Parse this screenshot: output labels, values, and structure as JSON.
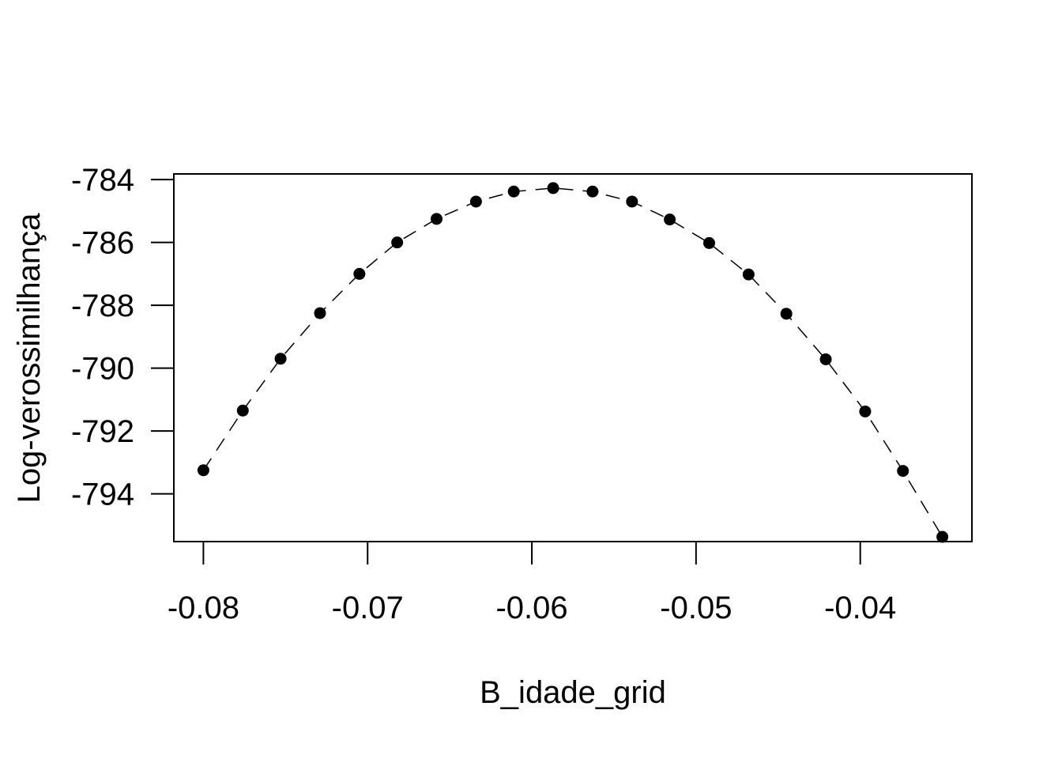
{
  "chart_data": {
    "type": "scatter",
    "title": "",
    "xlabel": "B_idade_grid",
    "ylabel": "Log-verossimilhança",
    "x_ticks": [
      -0.08,
      -0.07,
      -0.06,
      -0.05,
      -0.04
    ],
    "x_tick_labels": [
      "-0.08",
      "-0.07",
      "-0.06",
      "-0.05",
      "-0.04"
    ],
    "y_ticks": [
      -784,
      -786,
      -788,
      -790,
      -792,
      -794
    ],
    "y_tick_labels": [
      "-784",
      "-786",
      "-788",
      "-790",
      "-792",
      "-794"
    ],
    "xlim": [
      -0.0818,
      -0.0332
    ],
    "ylim": [
      -795.52,
      -783.82
    ],
    "grid": false,
    "series": [
      {
        "marker": "filled-circle",
        "line": "dashed",
        "color": "#000000",
        "x": [
          -0.08,
          -0.0776,
          -0.0753,
          -0.0729,
          -0.0705,
          -0.0682,
          -0.0658,
          -0.0634,
          -0.0611,
          -0.0587,
          -0.0563,
          -0.0539,
          -0.0516,
          -0.0492,
          -0.0468,
          -0.0445,
          -0.0421,
          -0.0397,
          -0.0374,
          -0.035
        ],
        "y": [
          -793.25,
          -791.35,
          -789.7,
          -788.25,
          -787.0,
          -786.0,
          -785.25,
          -784.7,
          -784.38,
          -784.27,
          -784.38,
          -784.7,
          -785.27,
          -786.02,
          -787.02,
          -788.27,
          -789.72,
          -791.38,
          -793.27,
          -795.37
        ]
      }
    ]
  }
}
